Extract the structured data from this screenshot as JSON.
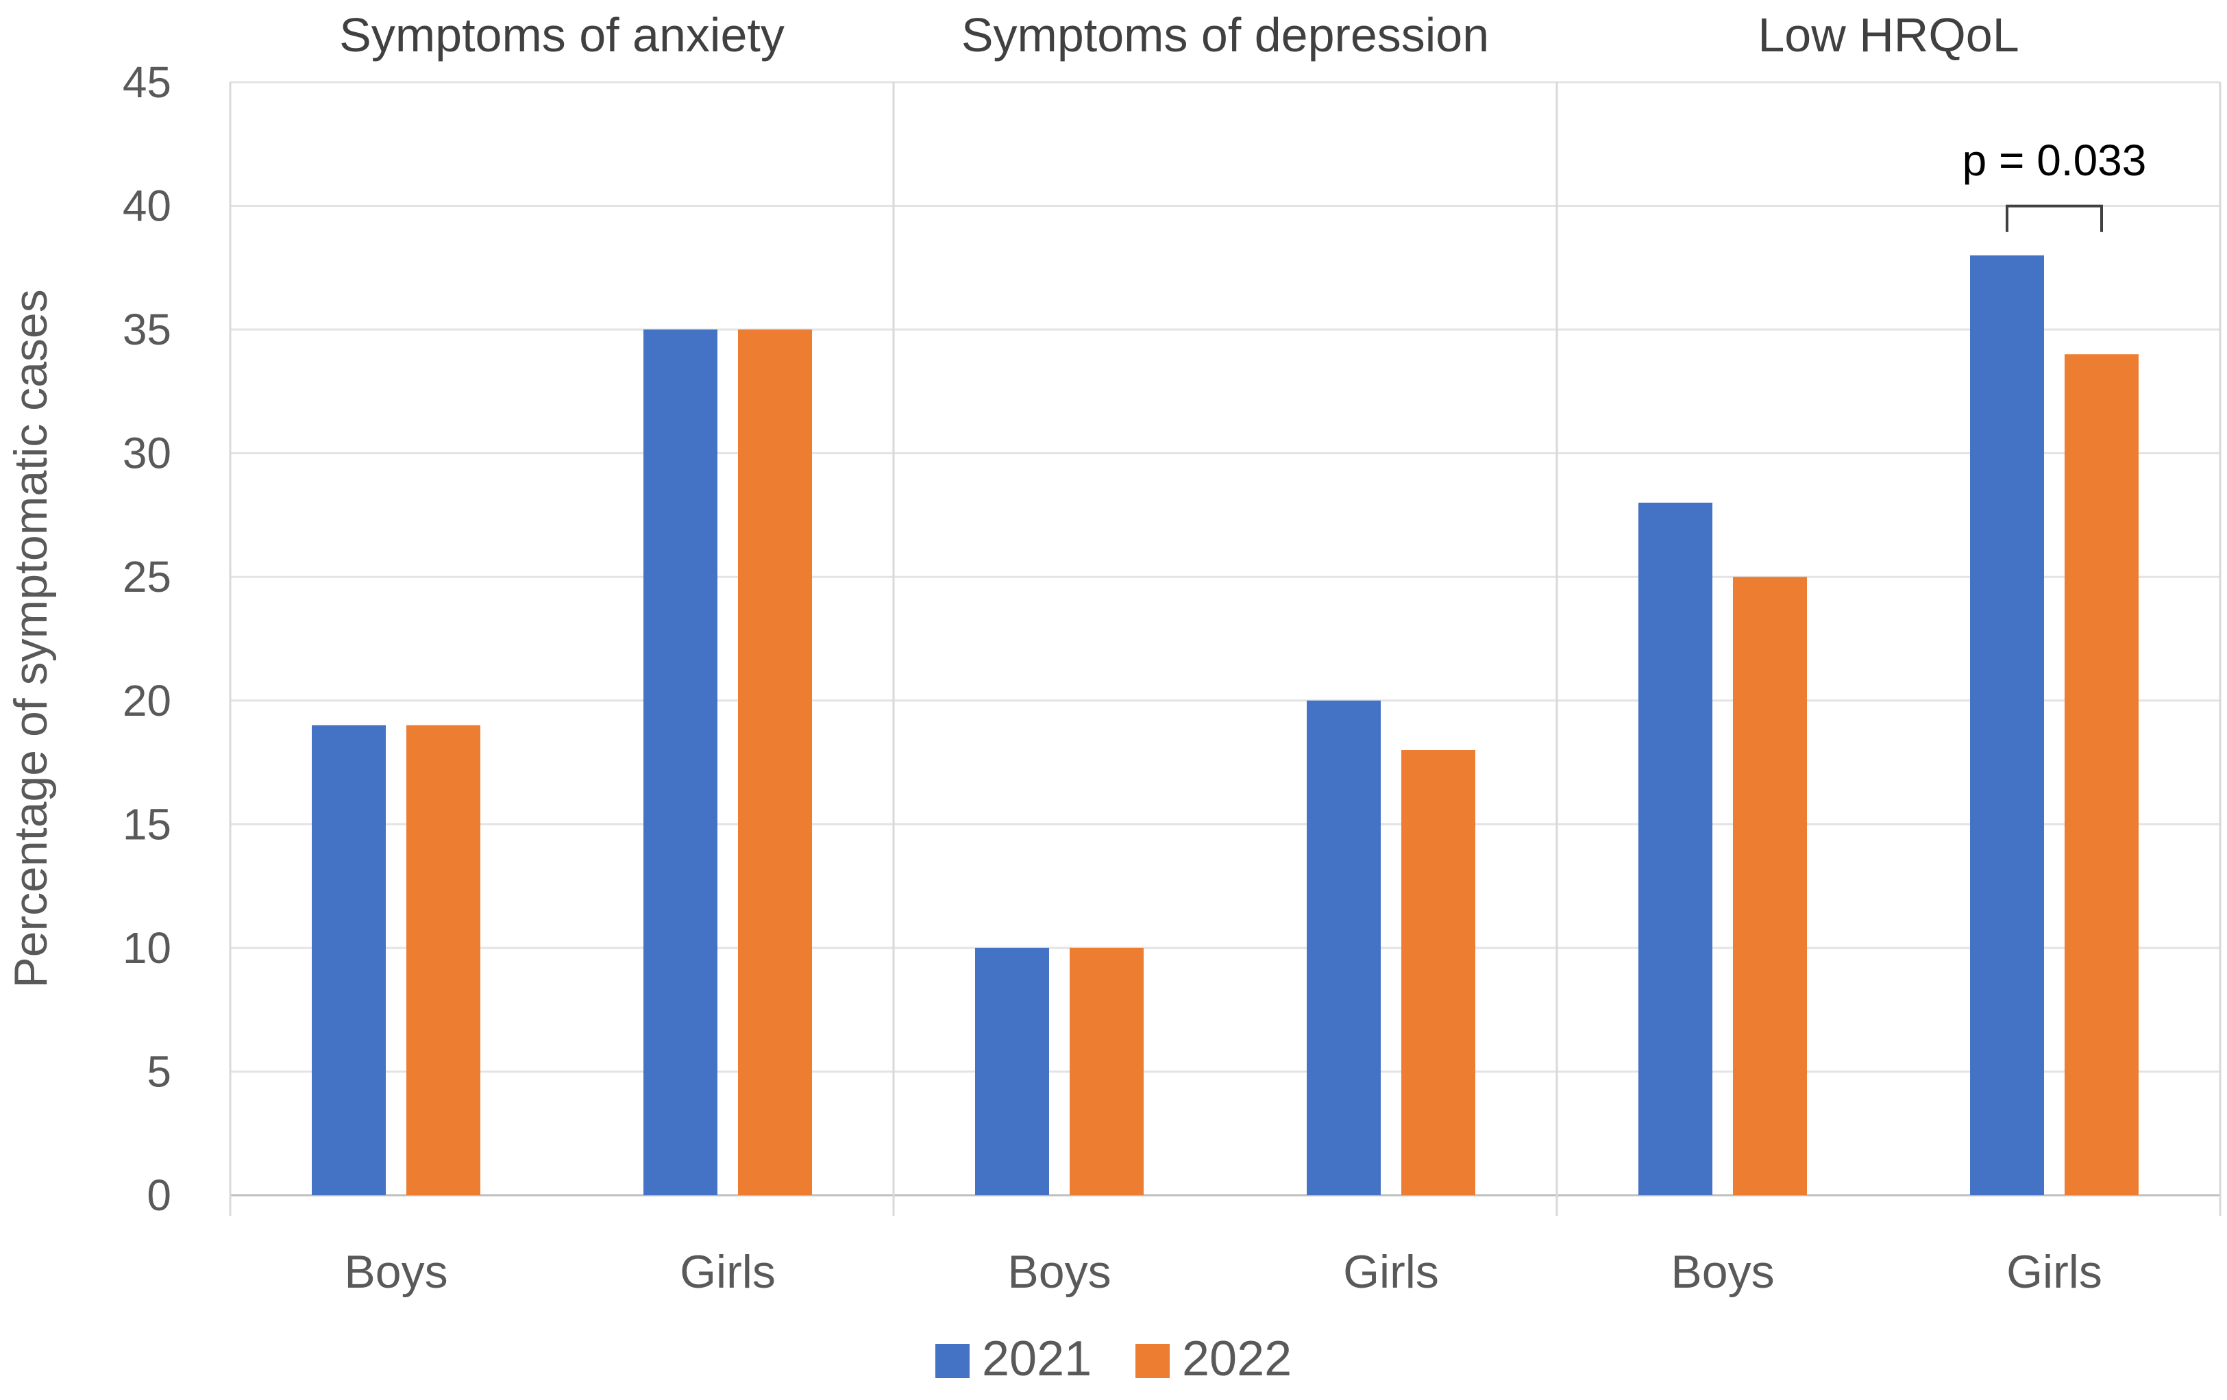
{
  "chart_data": {
    "type": "bar",
    "title": "",
    "xlabel": "",
    "ylabel": "Percentage of symptomatic cases",
    "ylim": [
      0,
      45
    ],
    "yticks": [
      0,
      5,
      10,
      15,
      20,
      25,
      30,
      35,
      40,
      45
    ],
    "groups": [
      "Symptoms of anxiety",
      "Symptoms of depression",
      "Low HRQoL"
    ],
    "subcategories": [
      "Boys",
      "Girls"
    ],
    "categories": [
      "Boys",
      "Girls",
      "Boys",
      "Girls",
      "Boys",
      "Girls"
    ],
    "series": [
      {
        "name": "2021",
        "color": "#4472C4",
        "values": [
          19,
          35,
          10,
          20,
          28,
          38
        ]
      },
      {
        "name": "2022",
        "color": "#ED7D31",
        "values": [
          19,
          35,
          10,
          18,
          25,
          34
        ]
      }
    ],
    "legend_position": "bottom",
    "grid": true,
    "annotation": {
      "text": "p = 0.033",
      "group_index": 2,
      "category_index": 5
    }
  }
}
